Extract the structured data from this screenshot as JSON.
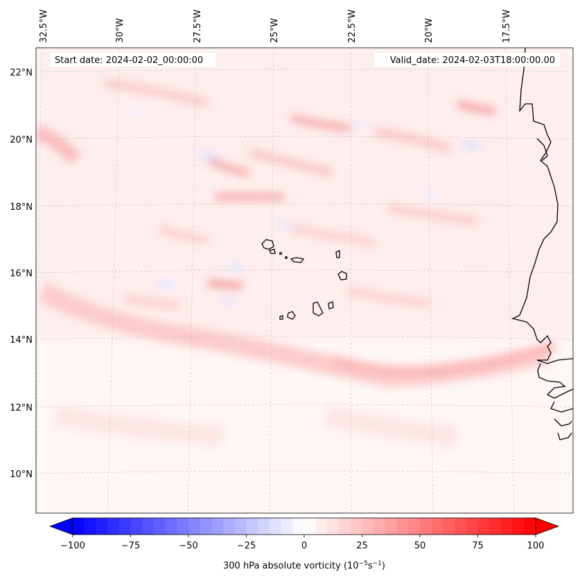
{
  "map": {
    "start_label": "Start date: 2024-02-02_00:00:00",
    "valid_label": "Valid_date: 2024-02-03T18:00:00.00",
    "lon_labels": [
      "32.5°W",
      "30°W",
      "27.5°W",
      "25°W",
      "22.5°W",
      "20°W",
      "17.5°W"
    ],
    "lat_labels": [
      "22°N",
      "20°N",
      "18°N",
      "16°N",
      "14°N",
      "12°N",
      "10°N"
    ],
    "coastline_color": "#000000",
    "gridline_color": "#bbbbbb"
  },
  "colorbar": {
    "ticks": [
      "−100",
      "−75",
      "−50",
      "−25",
      "0",
      "25",
      "50",
      "75",
      "100"
    ],
    "label": "300 hPa absolute vorticity (10",
    "label_sup1": "−5",
    "label_mid": "s",
    "label_sup2": "−1",
    "label_end": ")",
    "min": -100,
    "max": 100,
    "extend": "both",
    "low_color": "#0000ff",
    "mid_color": "#ffffff",
    "high_color": "#ff0000"
  }
}
